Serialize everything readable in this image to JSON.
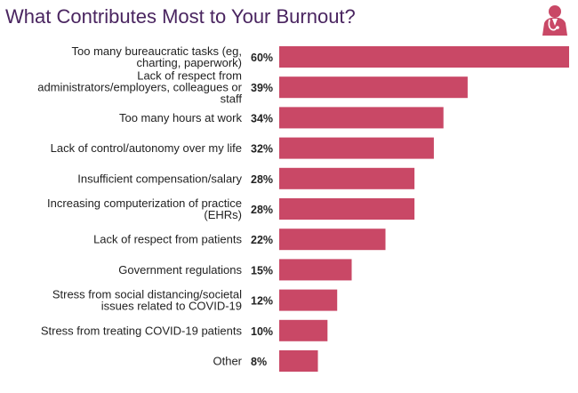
{
  "header": {
    "title": "What Contributes Most to Your Burnout?",
    "logo_icon": "doctor-stethoscope-icon"
  },
  "colors": {
    "bar": "#c94866",
    "title": "#4a2560",
    "text": "#222222"
  },
  "chart_data": {
    "type": "bar",
    "orientation": "horizontal",
    "title": "What Contributes Most to Your Burnout?",
    "categories": [
      [
        "Too many bureaucratic tasks (eg,",
        "charting, paperwork)"
      ],
      [
        "Lack of respect from",
        "administrators/employers, colleagues or",
        "staff"
      ],
      [
        "Too many hours at work"
      ],
      [
        "Lack of control/autonomy over my life"
      ],
      [
        "Insufficient compensation/salary"
      ],
      [
        "Increasing computerization of practice",
        "(EHRs)"
      ],
      [
        "Lack of respect from patients"
      ],
      [
        "Government regulations"
      ],
      [
        "Stress from social distancing/societal",
        "issues related to COVID-19"
      ],
      [
        "Stress from treating COVID-19 patients"
      ],
      [
        "Other"
      ]
    ],
    "values": [
      60,
      39,
      34,
      32,
      28,
      28,
      22,
      15,
      12,
      10,
      8
    ],
    "value_labels": [
      "60%",
      "39%",
      "34%",
      "32%",
      "28%",
      "28%",
      "22%",
      "15%",
      "12%",
      "10%",
      "8%"
    ],
    "xlim": [
      0,
      60
    ],
    "grid": false,
    "legend": "none"
  }
}
